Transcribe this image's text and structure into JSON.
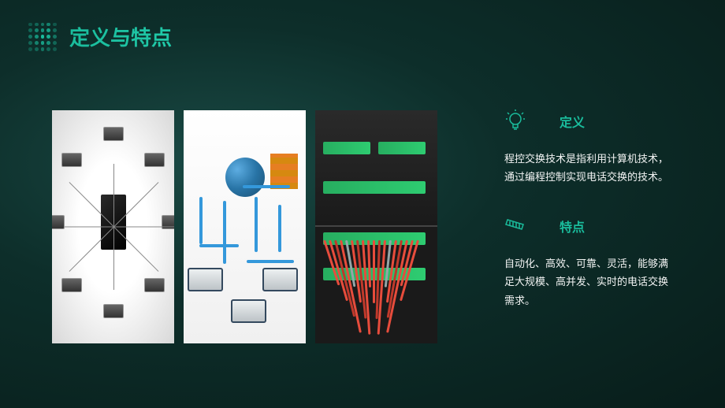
{
  "header": {
    "title": "定义与特点",
    "logo_colors": {
      "primary": "#1abc9c",
      "fade": "#0e6e5c"
    }
  },
  "title_gradient": {
    "start": "#1abc9c",
    "end": "#20c9a8"
  },
  "images": [
    {
      "type": "network-hub",
      "bg": "#e8e8e8"
    },
    {
      "type": "network-globe",
      "bg": "#ffffff"
    },
    {
      "type": "server-rack",
      "bg": "#1a1a1a"
    }
  ],
  "sections": [
    {
      "icon": "lightbulb",
      "icon_color": "#1abc9c",
      "title": "定义",
      "text": "程控交换技术是指利用计算机技术，通过编程控制实现电话交换的技术。"
    },
    {
      "icon": "ticket",
      "icon_color": "#1abc9c",
      "title": "特点",
      "text": "自动化、高效、可靠、灵活，能够满足大规模、高并发、实时的电话交换需求。"
    }
  ],
  "colors": {
    "bg_gradient_start": "#1a4a45",
    "bg_gradient_mid": "#0d2e2a",
    "bg_gradient_end": "#081d1a",
    "accent": "#1abc9c",
    "text": "#ffffff"
  }
}
